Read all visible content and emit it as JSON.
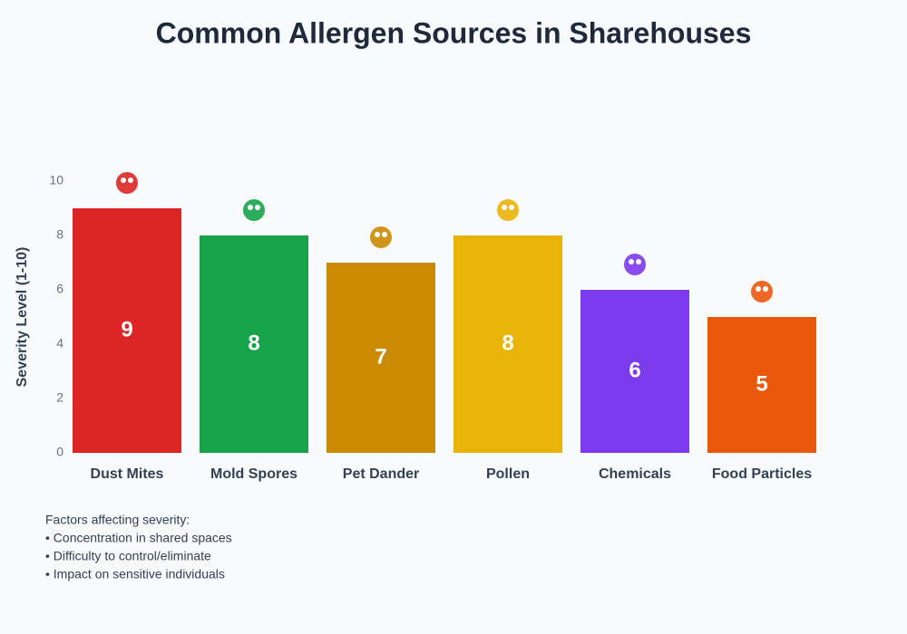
{
  "chart_data": {
    "type": "bar",
    "title": "Common Allergen Sources in Sharehouses",
    "y_label": "Severity Level (1-10)",
    "categories": [
      "Dust Mites",
      "Mold Spores",
      "Pet Dander",
      "Pollen",
      "Chemicals",
      "Food Particles"
    ],
    "values": [
      9,
      8,
      7,
      8,
      6,
      5
    ],
    "colors": [
      "#dc2626",
      "#16a34a",
      "#ca8a04",
      "#eab308",
      "#7c3aed",
      "#ea580c"
    ],
    "ylim": [
      0,
      10
    ],
    "yticks": [
      0,
      2,
      4,
      6,
      8,
      10
    ],
    "grid": false
  },
  "notes": [
    "Factors affecting severity:",
    "• Concentration in shared spaces",
    "• Difficulty to control/eliminate",
    "• Impact on sensitive individuals"
  ]
}
